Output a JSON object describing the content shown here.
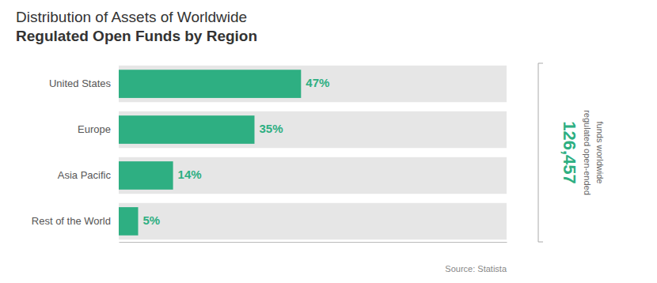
{
  "chart_data": {
    "type": "bar",
    "orientation": "horizontal",
    "title": [
      "Distribution of Assets of Worldwide",
      "Regulated Open Funds by Region"
    ],
    "categories": [
      "United States",
      "Europe",
      "Asia Pacific",
      "Rest of the World"
    ],
    "values": [
      47,
      35,
      14,
      5
    ],
    "value_labels": [
      "47%",
      "35%",
      "14%",
      "5%"
    ],
    "color": "#2eaf82",
    "xlim": [
      0,
      100
    ],
    "tick_labels": "y",
    "data_labels": true,
    "grid": false,
    "annotations": [
      "126,457",
      "regulated open-ended",
      "funds worldwide",
      "Source: Statista"
    ]
  }
}
